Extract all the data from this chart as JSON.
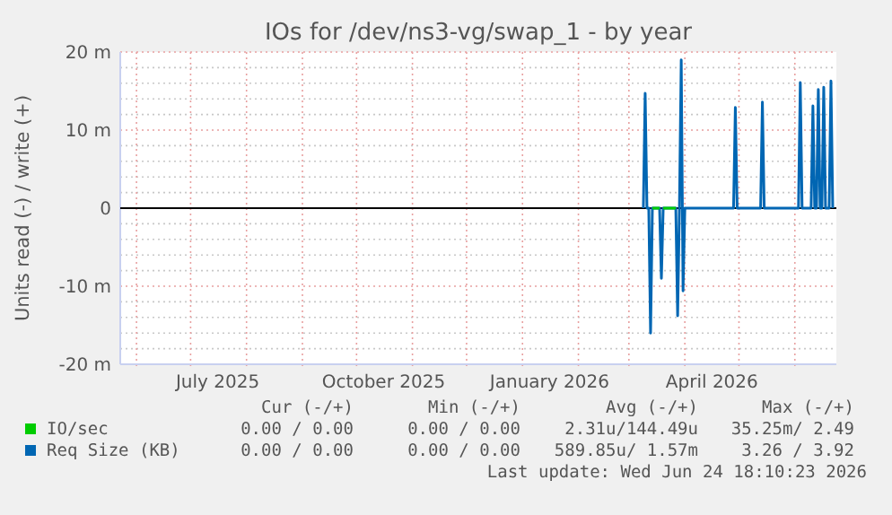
{
  "chart_data": {
    "type": "line",
    "title": "IOs for /dev/ns3-vg/swap_1 - by year",
    "ylabel": "Units read (-) / write (+)",
    "xlim": [
      "2025-05-23",
      "2026-06-24"
    ],
    "xticks": [
      {
        "value": "2025-06-01",
        "label": null
      },
      {
        "value": "2025-07-01",
        "label": null
      },
      {
        "value": "2025-07-16",
        "label": "July 2025"
      },
      {
        "value": "2025-08-01",
        "label": null
      },
      {
        "value": "2025-09-01",
        "label": null
      },
      {
        "value": "2025-10-01",
        "label": null
      },
      {
        "value": "2025-10-16",
        "label": "October 2025"
      },
      {
        "value": "2025-11-01",
        "label": null
      },
      {
        "value": "2025-12-01",
        "label": null
      },
      {
        "value": "2026-01-01",
        "label": null
      },
      {
        "value": "2026-01-16",
        "label": "January 2026"
      },
      {
        "value": "2026-02-01",
        "label": null
      },
      {
        "value": "2026-03-01",
        "label": null
      },
      {
        "value": "2026-04-01",
        "label": null
      },
      {
        "value": "2026-04-16",
        "label": "April 2026"
      },
      {
        "value": "2026-05-01",
        "label": null
      },
      {
        "value": "2026-06-01",
        "label": null
      }
    ],
    "ylim": [
      -20,
      20
    ],
    "yticks": [
      {
        "value": -20,
        "label": "-20 m"
      },
      {
        "value": -18,
        "label": null
      },
      {
        "value": -16,
        "label": null
      },
      {
        "value": -14,
        "label": null
      },
      {
        "value": -12,
        "label": null
      },
      {
        "value": -10,
        "label": "-10 m"
      },
      {
        "value": -8,
        "label": null
      },
      {
        "value": -6,
        "label": null
      },
      {
        "value": -4,
        "label": null
      },
      {
        "value": -2,
        "label": null
      },
      {
        "value": 0,
        "label": "0"
      },
      {
        "value": 2,
        "label": null
      },
      {
        "value": 4,
        "label": null
      },
      {
        "value": 6,
        "label": null
      },
      {
        "value": 8,
        "label": null
      },
      {
        "value": 10,
        "label": "10 m"
      },
      {
        "value": 12,
        "label": null
      },
      {
        "value": 14,
        "label": null
      },
      {
        "value": 16,
        "label": null
      },
      {
        "value": 18,
        "label": null
      },
      {
        "value": 20,
        "label": "20 m"
      }
    ],
    "grid": true,
    "legend": "bottom",
    "marker": "none",
    "line_style": "solid",
    "series": [
      {
        "name": "IO/sec",
        "color": "#00cc00",
        "x": [
          "2026-03-14",
          "2026-03-16",
          "2026-03-18",
          "2026-03-19",
          "2026-03-20",
          "2026-03-24",
          "2026-03-27"
        ],
        "values": [
          0,
          0,
          0,
          null,
          0,
          0,
          0
        ]
      },
      {
        "name": "Req Size (KB)",
        "color": "#0066b3",
        "x": [
          "2026-03-09",
          "2026-03-10",
          "2026-03-11",
          "2026-03-12",
          "2026-03-13",
          "2026-03-14",
          "2026-03-18",
          "2026-03-19",
          "2026-03-20",
          "2026-03-27",
          "2026-03-28",
          "2026-03-29",
          "2026-03-30",
          "2026-03-31",
          "2026-04-01",
          "2026-04-28",
          "2026-04-29",
          "2026-04-30",
          "2026-05-13",
          "2026-05-14",
          "2026-05-15",
          "2026-06-03",
          "2026-06-04",
          "2026-06-05",
          "2026-06-10",
          "2026-06-11",
          "2026-06-12",
          "2026-06-13",
          "2026-06-14",
          "2026-06-15",
          "2026-06-16",
          "2026-06-17",
          "2026-06-18",
          "2026-06-20",
          "2026-06-21",
          "2026-06-22"
        ],
        "values": [
          0,
          14.7,
          0,
          0,
          -16,
          0,
          0,
          -9,
          0,
          0,
          -13.8,
          0,
          19,
          -10.6,
          0,
          0,
          12.9,
          0,
          0,
          13.6,
          0,
          0,
          16.1,
          0,
          0,
          13.1,
          0,
          0,
          15.2,
          0,
          0,
          15.5,
          0,
          0,
          16.3,
          0
        ]
      }
    ],
    "annotations": [
      "Cur (-/+)",
      "Min (-/+)",
      "Avg (-/+)",
      "Max (-/+)",
      "0.00 / 0.00",
      "0.00 / 0.00",
      "2.31u/144.49u",
      "35.25m/ 2.49",
      "0.00 / 0.00",
      "0.00 / 0.00",
      "589.85u/ 1.57m",
      "3.26 / 3.92",
      "Last update: Wed Jun 24 18:10:23 2026"
    ]
  }
}
